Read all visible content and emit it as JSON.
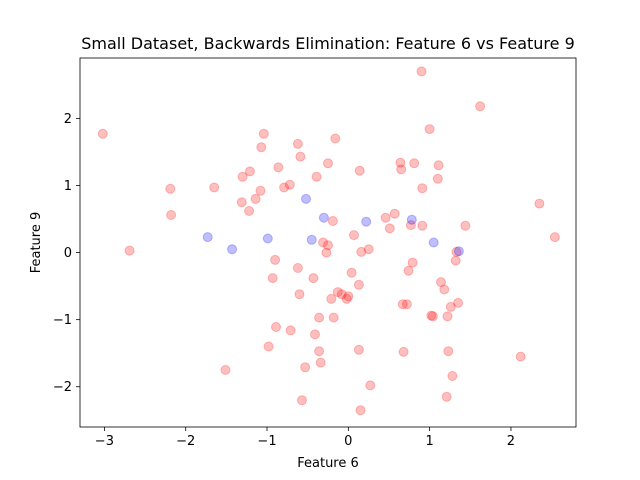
{
  "chart_data": {
    "type": "scatter",
    "title": "Small Dataset, Backwards Elimination: Feature 6 vs Feature 9",
    "xlabel": "Feature 6",
    "ylabel": "Feature 9",
    "xlim": [
      -3.3,
      2.8
    ],
    "ylim": [
      -2.6,
      2.9
    ],
    "xticks": [
      -3,
      -2,
      -1,
      0,
      1,
      2
    ],
    "yticks": [
      -2,
      -1,
      0,
      1,
      2
    ],
    "grid": false,
    "legend": "none",
    "marker_alpha": 0.25,
    "series": [
      {
        "color": "#ff0000",
        "points": [
          [
            -3.02,
            1.77
          ],
          [
            -2.69,
            0.03
          ],
          [
            -2.19,
            0.95
          ],
          [
            -2.18,
            0.56
          ],
          [
            -1.65,
            0.97
          ],
          [
            -1.51,
            -1.75
          ],
          [
            -1.3,
            1.13
          ],
          [
            -1.31,
            0.75
          ],
          [
            -1.21,
            1.21
          ],
          [
            -1.22,
            0.62
          ],
          [
            -1.14,
            0.8
          ],
          [
            -1.08,
            0.92
          ],
          [
            -1.07,
            1.57
          ],
          [
            -1.04,
            1.77
          ],
          [
            -0.98,
            -1.4
          ],
          [
            -0.93,
            -0.38
          ],
          [
            -0.9,
            -0.11
          ],
          [
            -0.89,
            -1.11
          ],
          [
            -0.86,
            1.27
          ],
          [
            -0.79,
            0.97
          ],
          [
            -0.72,
            1.01
          ],
          [
            -0.71,
            -1.16
          ],
          [
            -0.62,
            1.62
          ],
          [
            -0.62,
            -0.23
          ],
          [
            -0.6,
            -0.62
          ],
          [
            -0.59,
            1.43
          ],
          [
            -0.57,
            -2.2
          ],
          [
            -0.53,
            -1.71
          ],
          [
            -0.43,
            -0.38
          ],
          [
            -0.41,
            -1.22
          ],
          [
            -0.39,
            1.13
          ],
          [
            -0.36,
            -1.47
          ],
          [
            -0.36,
            -0.97
          ],
          [
            -0.34,
            -1.64
          ],
          [
            -0.31,
            0.15
          ],
          [
            -0.27,
            0.0
          ],
          [
            -0.25,
            1.33
          ],
          [
            -0.25,
            0.11
          ],
          [
            -0.21,
            -0.69
          ],
          [
            -0.19,
            0.47
          ],
          [
            -0.18,
            -0.97
          ],
          [
            -0.16,
            1.7
          ],
          [
            -0.13,
            -0.59
          ],
          [
            -0.08,
            -0.62
          ],
          [
            -0.02,
            -0.69
          ],
          [
            0.0,
            -0.65
          ],
          [
            0.04,
            -0.3
          ],
          [
            0.07,
            0.26
          ],
          [
            0.13,
            -0.48
          ],
          [
            0.13,
            -1.45
          ],
          [
            0.14,
            1.22
          ],
          [
            0.15,
            -2.35
          ],
          [
            0.16,
            0.01
          ],
          [
            0.25,
            0.05
          ],
          [
            0.27,
            -1.98
          ],
          [
            0.46,
            0.52
          ],
          [
            0.51,
            0.36
          ],
          [
            0.57,
            0.58
          ],
          [
            0.64,
            1.34
          ],
          [
            0.65,
            1.24
          ],
          [
            0.67,
            -0.77
          ],
          [
            0.68,
            -1.48
          ],
          [
            0.72,
            -0.77
          ],
          [
            0.74,
            -0.27
          ],
          [
            0.77,
            0.41
          ],
          [
            0.79,
            -0.15
          ],
          [
            0.81,
            1.33
          ],
          [
            0.9,
            2.7
          ],
          [
            0.91,
            0.96
          ],
          [
            0.91,
            0.4
          ],
          [
            1.0,
            1.84
          ],
          [
            1.02,
            -0.94
          ],
          [
            1.04,
            -0.95
          ],
          [
            1.1,
            1.1
          ],
          [
            1.11,
            1.3
          ],
          [
            1.14,
            -0.44
          ],
          [
            1.18,
            -0.55
          ],
          [
            1.21,
            -2.15
          ],
          [
            1.22,
            -0.95
          ],
          [
            1.23,
            -1.47
          ],
          [
            1.26,
            -0.81
          ],
          [
            1.28,
            -1.84
          ],
          [
            1.32,
            -0.12
          ],
          [
            1.33,
            0.01
          ],
          [
            1.35,
            -0.75
          ],
          [
            1.44,
            0.4
          ],
          [
            1.62,
            2.18
          ],
          [
            2.12,
            -1.55
          ],
          [
            2.35,
            0.73
          ],
          [
            2.54,
            0.23
          ]
        ]
      },
      {
        "color": "#0000ff",
        "points": [
          [
            -1.73,
            0.23
          ],
          [
            -1.43,
            0.05
          ],
          [
            -0.99,
            0.21
          ],
          [
            -0.52,
            0.8
          ],
          [
            -0.45,
            0.19
          ],
          [
            -0.3,
            0.52
          ],
          [
            0.22,
            0.46
          ],
          [
            0.78,
            0.49
          ],
          [
            1.05,
            0.15
          ],
          [
            1.36,
            0.02
          ]
        ]
      }
    ]
  }
}
